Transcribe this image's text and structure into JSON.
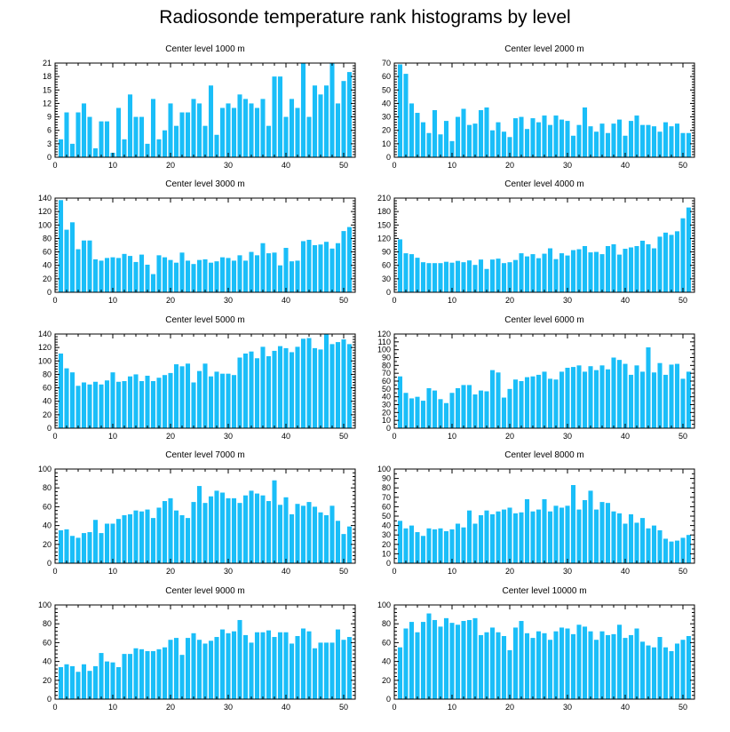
{
  "figure": {
    "title": "Radiosonde temperature rank histograms by level",
    "bar_color": "#1ABEF8"
  },
  "chart_data": [
    {
      "type": "bar",
      "title": "Center level 1000 m",
      "x_start": 1,
      "xlim": [
        0,
        52
      ],
      "xticks": [
        0,
        10,
        20,
        30,
        40,
        50
      ],
      "ylim": [
        0,
        21
      ],
      "yticks": [
        0,
        3,
        6,
        9,
        12,
        15,
        18,
        21
      ],
      "values": [
        4,
        10,
        3,
        10,
        12,
        9,
        2,
        8,
        8,
        1,
        11,
        4,
        14,
        9,
        9,
        3,
        13,
        4,
        6,
        12,
        7,
        10,
        10,
        13,
        12,
        7,
        16,
        5,
        11,
        12,
        11,
        14,
        13,
        12,
        11,
        13,
        7,
        18,
        18,
        9,
        13,
        11,
        21,
        9,
        16,
        14,
        16,
        21,
        12,
        17,
        19
      ]
    },
    {
      "type": "bar",
      "title": "Center level 2000 m",
      "x_start": 1,
      "xlim": [
        0,
        52
      ],
      "xticks": [
        0,
        10,
        20,
        30,
        40,
        50
      ],
      "ylim": [
        0,
        70
      ],
      "yticks": [
        0,
        10,
        20,
        30,
        40,
        50,
        60,
        70
      ],
      "values": [
        69,
        62,
        40,
        33,
        26,
        18,
        35,
        17,
        27,
        12,
        30,
        36,
        24,
        25,
        35,
        37,
        20,
        26,
        19,
        15,
        29,
        30,
        21,
        29,
        26,
        31,
        24,
        31,
        28,
        27,
        16,
        24,
        37,
        23,
        19,
        25,
        18,
        25,
        28,
        16,
        27,
        31,
        24,
        24,
        23,
        19,
        26,
        23,
        25,
        18,
        18
      ]
    },
    {
      "type": "bar",
      "title": "Center level 3000 m",
      "x_start": 1,
      "xlim": [
        0,
        52
      ],
      "xticks": [
        0,
        10,
        20,
        30,
        40,
        50
      ],
      "ylim": [
        0,
        140
      ],
      "yticks": [
        0,
        20,
        40,
        60,
        80,
        100,
        120,
        140
      ],
      "values": [
        137,
        93,
        104,
        64,
        77,
        77,
        49,
        47,
        51,
        52,
        51,
        57,
        54,
        45,
        56,
        41,
        27,
        55,
        52,
        48,
        44,
        59,
        47,
        42,
        48,
        49,
        44,
        46,
        52,
        51,
        47,
        55,
        47,
        60,
        55,
        73,
        58,
        59,
        40,
        66,
        46,
        47,
        76,
        78,
        70,
        71,
        75,
        65,
        73,
        91,
        97
      ]
    },
    {
      "type": "bar",
      "title": "Center level 4000 m",
      "x_start": 1,
      "xlim": [
        0,
        52
      ],
      "xticks": [
        0,
        10,
        20,
        30,
        40,
        50
      ],
      "ylim": [
        0,
        210
      ],
      "yticks": [
        0,
        30,
        60,
        90,
        120,
        150,
        180,
        210
      ],
      "values": [
        118,
        87,
        85,
        77,
        67,
        65,
        65,
        65,
        68,
        66,
        70,
        67,
        71,
        61,
        73,
        52,
        73,
        75,
        65,
        67,
        72,
        87,
        80,
        85,
        76,
        86,
        98,
        74,
        87,
        82,
        94,
        96,
        103,
        89,
        90,
        85,
        103,
        107,
        84,
        97,
        100,
        103,
        115,
        107,
        98,
        124,
        133,
        128,
        136,
        165,
        189
      ]
    },
    {
      "type": "bar",
      "title": "Center level 5000 m",
      "x_start": 1,
      "xlim": [
        0,
        52
      ],
      "xticks": [
        0,
        10,
        20,
        30,
        40,
        50
      ],
      "ylim": [
        0,
        140
      ],
      "yticks": [
        0,
        20,
        40,
        60,
        80,
        100,
        120,
        140
      ],
      "values": [
        111,
        89,
        83,
        63,
        68,
        65,
        69,
        65,
        71,
        83,
        69,
        70,
        77,
        80,
        70,
        78,
        70,
        75,
        79,
        82,
        95,
        92,
        96,
        68,
        85,
        96,
        77,
        84,
        81,
        81,
        79,
        105,
        111,
        114,
        104,
        121,
        107,
        115,
        122,
        119,
        113,
        121,
        133,
        134,
        119,
        117,
        140,
        125,
        128,
        132,
        125
      ]
    },
    {
      "type": "bar",
      "title": "Center level 6000 m",
      "x_start": 1,
      "xlim": [
        0,
        52
      ],
      "xticks": [
        0,
        10,
        20,
        30,
        40,
        50
      ],
      "ylim": [
        0,
        120
      ],
      "yticks": [
        0,
        10,
        20,
        30,
        40,
        50,
        60,
        70,
        80,
        90,
        100,
        110,
        120
      ],
      "values": [
        66,
        45,
        38,
        40,
        35,
        51,
        48,
        37,
        32,
        45,
        51,
        55,
        55,
        43,
        48,
        47,
        74,
        71,
        39,
        50,
        62,
        60,
        65,
        66,
        68,
        72,
        63,
        62,
        72,
        77,
        78,
        80,
        72,
        79,
        74,
        80,
        75,
        90,
        87,
        82,
        68,
        80,
        72,
        103,
        71,
        83,
        68,
        81,
        82,
        63,
        72
      ]
    },
    {
      "type": "bar",
      "title": "Center level 7000 m",
      "x_start": 1,
      "xlim": [
        0,
        52
      ],
      "xticks": [
        0,
        10,
        20,
        30,
        40,
        50
      ],
      "ylim": [
        0,
        100
      ],
      "yticks": [
        0,
        20,
        40,
        60,
        80,
        100
      ],
      "values": [
        35,
        36,
        29,
        27,
        32,
        33,
        46,
        32,
        42,
        42,
        47,
        51,
        52,
        56,
        55,
        57,
        48,
        59,
        66,
        69,
        56,
        51,
        48,
        65,
        82,
        64,
        71,
        77,
        75,
        69,
        69,
        64,
        72,
        77,
        74,
        72,
        66,
        88,
        62,
        70,
        52,
        63,
        61,
        65,
        60,
        54,
        51,
        61,
        45,
        31,
        39
      ]
    },
    {
      "type": "bar",
      "title": "Center level 8000 m",
      "x_start": 1,
      "xlim": [
        0,
        52
      ],
      "xticks": [
        0,
        10,
        20,
        30,
        40,
        50
      ],
      "ylim": [
        0,
        100
      ],
      "yticks": [
        0,
        10,
        20,
        30,
        40,
        50,
        60,
        70,
        80,
        90,
        100
      ],
      "values": [
        45,
        37,
        40,
        33,
        29,
        37,
        36,
        37,
        34,
        36,
        42,
        38,
        56,
        42,
        51,
        56,
        52,
        55,
        57,
        59,
        53,
        54,
        68,
        55,
        57,
        68,
        55,
        61,
        59,
        61,
        83,
        57,
        67,
        77,
        57,
        65,
        64,
        55,
        53,
        42,
        52,
        43,
        48,
        37,
        40,
        35,
        26,
        23,
        24,
        27,
        30
      ]
    },
    {
      "type": "bar",
      "title": "Center level 9000 m",
      "x_start": 1,
      "xlim": [
        0,
        52
      ],
      "xticks": [
        0,
        10,
        20,
        30,
        40,
        50
      ],
      "ylim": [
        0,
        100
      ],
      "yticks": [
        0,
        20,
        40,
        60,
        80,
        100
      ],
      "values": [
        34,
        37,
        35,
        29,
        37,
        30,
        35,
        49,
        40,
        39,
        34,
        48,
        48,
        54,
        53,
        51,
        51,
        53,
        55,
        63,
        65,
        47,
        65,
        70,
        63,
        59,
        62,
        66,
        74,
        70,
        72,
        84,
        68,
        60,
        71,
        71,
        73,
        66,
        71,
        71,
        59,
        67,
        75,
        72,
        54,
        60,
        60,
        60,
        74,
        63,
        66
      ]
    },
    {
      "type": "bar",
      "title": "Center level 10000 m",
      "x_start": 1,
      "xlim": [
        0,
        52
      ],
      "xticks": [
        0,
        10,
        20,
        30,
        40,
        50
      ],
      "ylim": [
        0,
        100
      ],
      "yticks": [
        0,
        20,
        40,
        60,
        80,
        100
      ],
      "values": [
        55,
        75,
        82,
        71,
        82,
        91,
        84,
        77,
        86,
        81,
        79,
        83,
        84,
        86,
        68,
        71,
        76,
        71,
        67,
        52,
        76,
        83,
        70,
        65,
        72,
        70,
        63,
        72,
        76,
        75,
        69,
        79,
        77,
        72,
        63,
        72,
        68,
        69,
        79,
        65,
        68,
        75,
        61,
        57,
        55,
        66,
        55,
        51,
        59,
        63,
        67
      ]
    }
  ]
}
